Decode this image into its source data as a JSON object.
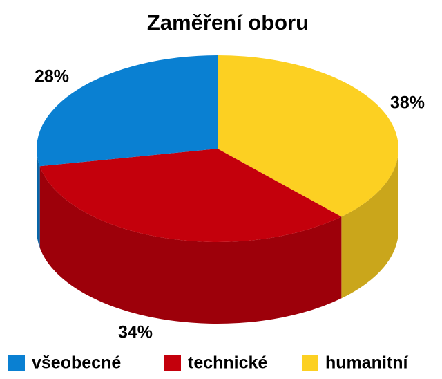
{
  "chart_data": {
    "type": "pie",
    "title": "Zaměření oboru",
    "categories": [
      "všeobecné",
      "technické",
      "humanitní"
    ],
    "values": [
      28,
      34,
      38
    ],
    "value_labels": [
      "28%",
      "34%",
      "38%"
    ],
    "colors": [
      "#0a80d2",
      "#c4000c",
      "#fcd022"
    ]
  }
}
